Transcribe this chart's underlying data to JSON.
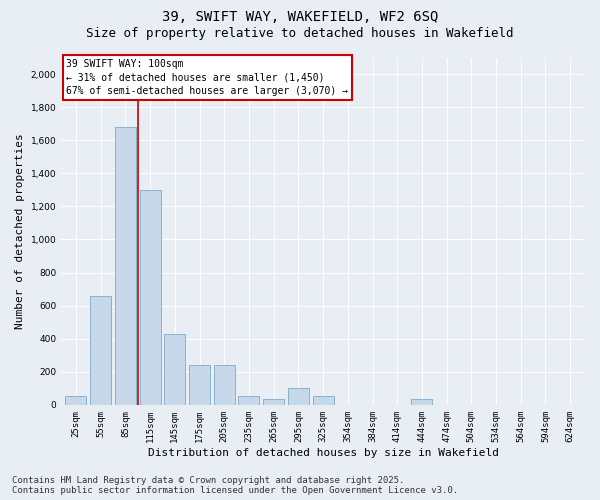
{
  "title_line1": "39, SWIFT WAY, WAKEFIELD, WF2 6SQ",
  "title_line2": "Size of property relative to detached houses in Wakefield",
  "xlabel": "Distribution of detached houses by size in Wakefield",
  "ylabel": "Number of detached properties",
  "bar_color": "#c8d8eb",
  "bar_edge_color": "#6a9fc0",
  "vline_color": "#cc0000",
  "categories": [
    "25sqm",
    "55sqm",
    "85sqm",
    "115sqm",
    "145sqm",
    "175sqm",
    "205sqm",
    "235sqm",
    "265sqm",
    "295sqm",
    "325sqm",
    "354sqm",
    "384sqm",
    "414sqm",
    "444sqm",
    "474sqm",
    "504sqm",
    "534sqm",
    "564sqm",
    "594sqm",
    "624sqm"
  ],
  "values": [
    55,
    660,
    1680,
    1300,
    430,
    240,
    240,
    55,
    35,
    100,
    55,
    0,
    0,
    0,
    35,
    0,
    0,
    0,
    0,
    0,
    0
  ],
  "vline_pos": 2.5,
  "ylim": [
    0,
    2100
  ],
  "yticks": [
    0,
    200,
    400,
    600,
    800,
    1000,
    1200,
    1400,
    1600,
    1800,
    2000
  ],
  "annotation_text": "39 SWIFT WAY: 100sqm\n← 31% of detached houses are smaller (1,450)\n67% of semi-detached houses are larger (3,070) →",
  "footer_line1": "Contains HM Land Registry data © Crown copyright and database right 2025.",
  "footer_line2": "Contains public sector information licensed under the Open Government Licence v3.0.",
  "background_color": "#e8eef4",
  "plot_bg_color": "#e8eef4",
  "grid_color": "#ffffff",
  "title_fontsize": 10,
  "subtitle_fontsize": 9,
  "axis_label_fontsize": 8,
  "tick_fontsize": 6.5,
  "annotation_fontsize": 7,
  "footer_fontsize": 6.5
}
